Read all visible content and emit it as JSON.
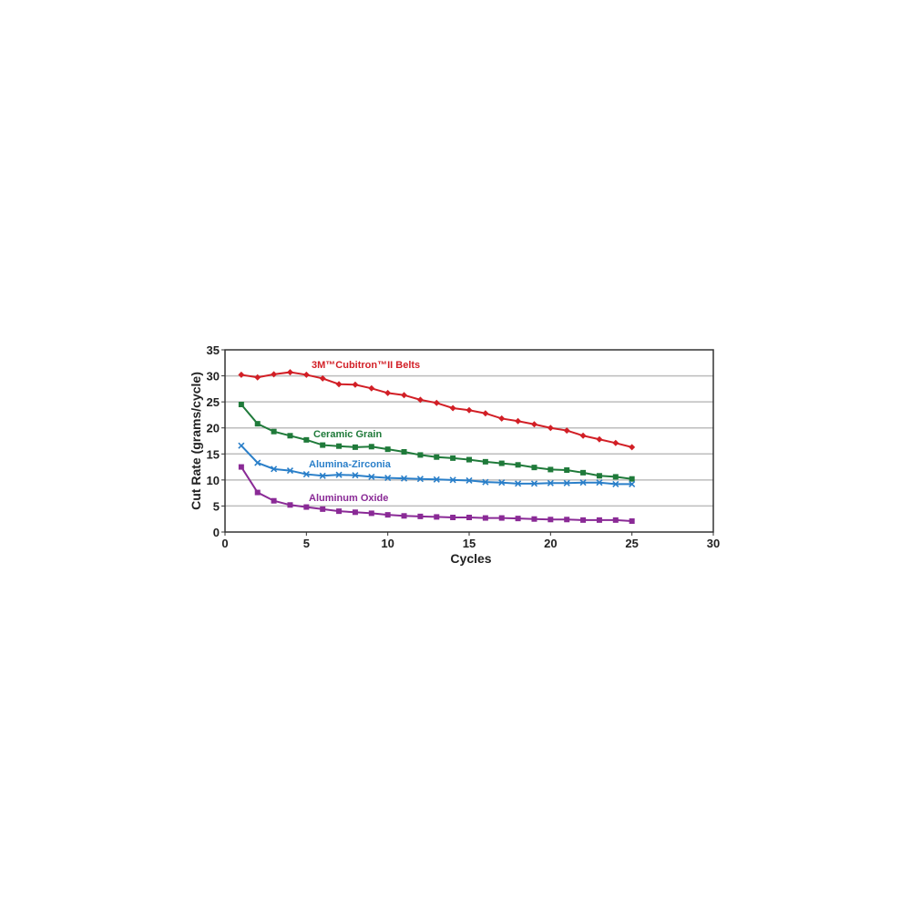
{
  "chart_data": {
    "type": "line",
    "title": "",
    "xlabel": "Cycles",
    "ylabel": "Cut Rate (grams/cycle)",
    "xlim": [
      0,
      30
    ],
    "ylim": [
      0,
      35
    ],
    "xticks": [
      0,
      5,
      10,
      15,
      20,
      25,
      30
    ],
    "yticks": [
      0,
      5,
      10,
      15,
      20,
      25,
      30,
      35
    ],
    "grid": "horizontal",
    "legend": "inline labels",
    "x": [
      1,
      2,
      3,
      4,
      5,
      6,
      7,
      8,
      9,
      10,
      11,
      12,
      13,
      14,
      15,
      16,
      17,
      18,
      19,
      20,
      21,
      22,
      23,
      24,
      25
    ],
    "series": [
      {
        "name": "3M™Cubitron™II Belts",
        "color": "#d21f26",
        "marker": "diamond",
        "values": [
          30.2,
          29.7,
          30.3,
          30.7,
          30.2,
          29.5,
          28.4,
          28.3,
          27.6,
          26.7,
          26.3,
          25.4,
          24.8,
          23.8,
          23.4,
          22.8,
          21.8,
          21.3,
          20.7,
          20.0,
          19.5,
          18.5,
          17.8,
          17.1,
          16.3
        ]
      },
      {
        "name": "Ceramic Grain",
        "color": "#1f7a3a",
        "marker": "square",
        "values": [
          24.5,
          20.8,
          19.3,
          18.5,
          17.7,
          16.7,
          16.5,
          16.3,
          16.4,
          15.9,
          15.4,
          14.8,
          14.4,
          14.2,
          13.9,
          13.5,
          13.2,
          12.9,
          12.4,
          12.0,
          11.9,
          11.4,
          10.8,
          10.6,
          10.2
        ]
      },
      {
        "name": "Alumina-Zirconia",
        "color": "#2a7fc9",
        "marker": "x",
        "values": [
          16.6,
          13.3,
          12.1,
          11.8,
          11.1,
          10.8,
          11.0,
          10.9,
          10.6,
          10.4,
          10.3,
          10.2,
          10.1,
          10.0,
          9.9,
          9.6,
          9.5,
          9.3,
          9.3,
          9.4,
          9.4,
          9.5,
          9.5,
          9.2,
          9.2
        ]
      },
      {
        "name": "Aluminum Oxide",
        "color": "#8a2a96",
        "marker": "square",
        "values": [
          12.5,
          7.6,
          6.0,
          5.2,
          4.8,
          4.4,
          4.0,
          3.8,
          3.6,
          3.3,
          3.1,
          3.0,
          2.9,
          2.8,
          2.8,
          2.7,
          2.7,
          2.6,
          2.5,
          2.4,
          2.4,
          2.3,
          2.3,
          2.3,
          2.1
        ]
      }
    ]
  }
}
